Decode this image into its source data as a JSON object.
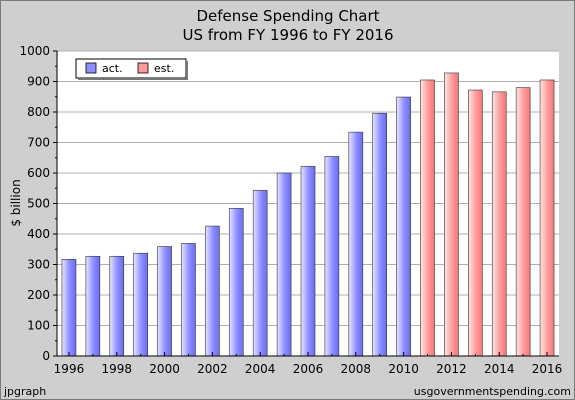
{
  "chart_data": {
    "type": "bar",
    "title": "Defense Spending Chart",
    "subtitle": "US from FY 1996 to FY 2016",
    "ylabel": "$ billion",
    "xlabel": "",
    "ylim": [
      0,
      1000
    ],
    "yticks": [
      0,
      100,
      200,
      300,
      400,
      500,
      600,
      700,
      800,
      900,
      1000
    ],
    "x_tick_labels": [
      "1996",
      "1998",
      "2000",
      "2002",
      "2004",
      "2006",
      "2008",
      "2010",
      "2012",
      "2014",
      "2016"
    ],
    "grid": true,
    "legend_position": "top-left",
    "categories": [
      "1996",
      "1997",
      "1998",
      "1999",
      "2000",
      "2001",
      "2002",
      "2003",
      "2004",
      "2005",
      "2006",
      "2007",
      "2008",
      "2009",
      "2010",
      "2011",
      "2012",
      "2013",
      "2014",
      "2015",
      "2016"
    ],
    "series": [
      {
        "name": "act.",
        "color": "#8d8dff",
        "values": [
          317,
          327,
          327,
          337,
          359,
          369,
          426,
          484,
          543,
          600,
          622,
          654,
          734,
          796,
          849,
          null,
          null,
          null,
          null,
          null,
          null
        ]
      },
      {
        "name": "est.",
        "color": "#ff9a9a",
        "values": [
          null,
          null,
          null,
          null,
          null,
          null,
          null,
          null,
          null,
          null,
          null,
          null,
          null,
          null,
          null,
          905,
          928,
          872,
          866,
          880,
          905
        ]
      }
    ]
  },
  "footer": {
    "left": "jpgraph",
    "right": "usgovernmentspending.com"
  }
}
